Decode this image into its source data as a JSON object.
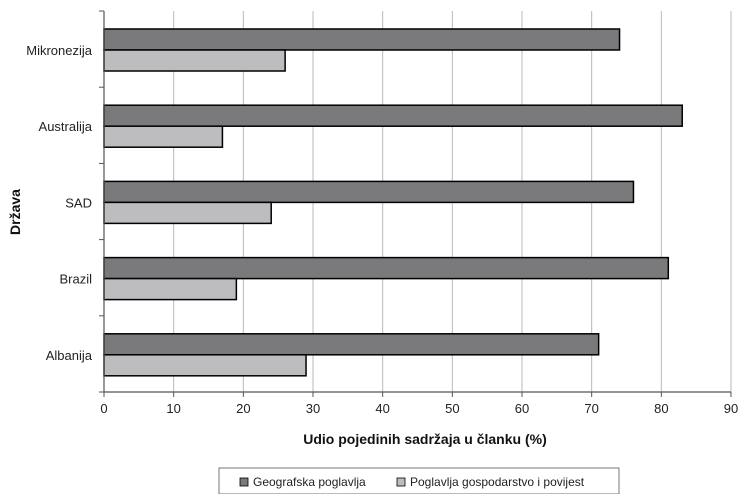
{
  "chart_data": {
    "type": "bar",
    "orientation": "horizontal",
    "categories": [
      "Mikronezija",
      "Australija",
      "SAD",
      "Brazil",
      "Albanija"
    ],
    "series": [
      {
        "name": "Geografska poglavlja",
        "values": [
          74,
          83,
          76,
          81,
          71
        ],
        "color": "#7a7a7c"
      },
      {
        "name": "Poglavlja gospodarstvo i povijest",
        "values": [
          26,
          17,
          24,
          19,
          29
        ],
        "color": "#bdbdc0"
      }
    ],
    "xlabel": "Udio pojedinih sadržaja u članku (%)",
    "ylabel": "Država",
    "xlim": [
      0,
      90
    ],
    "xticks": [
      0,
      10,
      20,
      30,
      40,
      50,
      60,
      70,
      80,
      90
    ],
    "grid": true,
    "legend_position": "bottom"
  }
}
